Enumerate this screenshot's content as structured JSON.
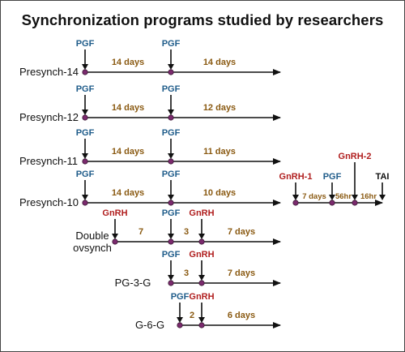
{
  "title": "Synchronization programs studied by researchers",
  "colors": {
    "pgf": "#1f5c8a",
    "gnrh": "#b01e1e",
    "duration": "#8a5a12",
    "dot": "#7b2a6e",
    "line": "#111111"
  },
  "rows": [
    {
      "label": "Presynch-14",
      "events": [
        {
          "text": "PGF",
          "kind": "pgf"
        },
        {
          "text": "PGF",
          "kind": "pgf"
        }
      ],
      "intervals": [
        "14 days",
        "14 days"
      ]
    },
    {
      "label": "Presynch-12",
      "events": [
        {
          "text": "PGF",
          "kind": "pgf"
        },
        {
          "text": "PGF",
          "kind": "pgf"
        }
      ],
      "intervals": [
        "14 days",
        "12 days"
      ]
    },
    {
      "label": "Presynch-11",
      "events": [
        {
          "text": "PGF",
          "kind": "pgf"
        },
        {
          "text": "PGF",
          "kind": "pgf"
        }
      ],
      "intervals": [
        "14 days",
        "11 days"
      ]
    },
    {
      "label": "Presynch-10",
      "events": [
        {
          "text": "PGF",
          "kind": "pgf"
        },
        {
          "text": "PGF",
          "kind": "pgf"
        }
      ],
      "intervals": [
        "14 days",
        "10 days"
      ]
    },
    {
      "label_lines": [
        "Double",
        "ovsynch"
      ],
      "events": [
        {
          "text": "GnRH",
          "kind": "gnrh"
        },
        {
          "text": "PGF",
          "kind": "pgf"
        },
        {
          "text": "GnRH",
          "kind": "gnrh"
        }
      ],
      "intervals": [
        "7",
        "3",
        "7 days"
      ]
    },
    {
      "label": "PG-3-G",
      "events": [
        {
          "text": "PGF",
          "kind": "pgf"
        },
        {
          "text": "GnRH",
          "kind": "gnrh"
        }
      ],
      "intervals": [
        "3",
        "7 days"
      ]
    },
    {
      "label": "G-6-G",
      "events": [
        {
          "text": "PGF",
          "kind": "pgf"
        },
        {
          "text": "GnRH",
          "kind": "gnrh"
        }
      ],
      "intervals": [
        "2",
        "6 days"
      ]
    }
  ],
  "ovsynch": {
    "events": [
      {
        "text": "GnRH-1",
        "kind": "gnrh"
      },
      {
        "text": "PGF",
        "kind": "pgf"
      },
      {
        "text": "GnRH-2",
        "kind": "gnrh"
      },
      {
        "text": "TAI",
        "kind": "tai"
      }
    ],
    "intervals": [
      "7 days",
      "56hr",
      "16hr"
    ]
  }
}
